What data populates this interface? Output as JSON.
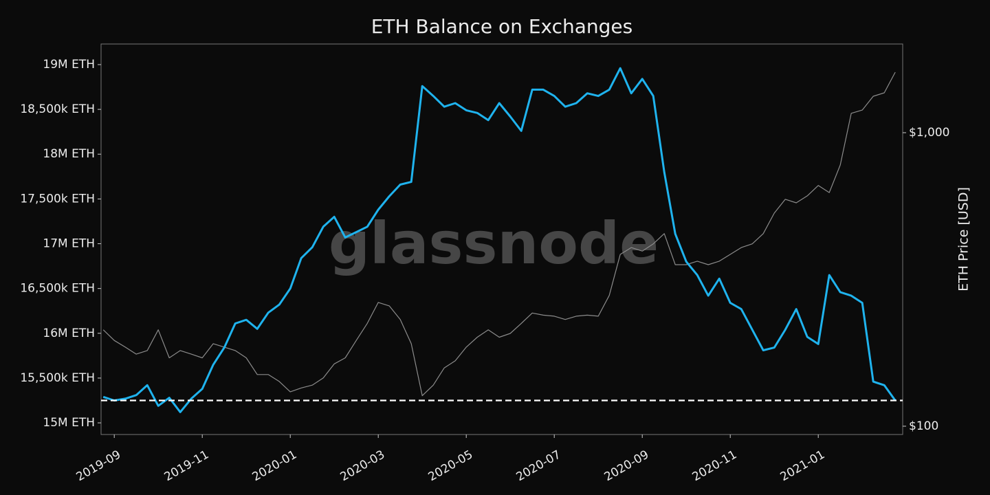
{
  "chart_data": {
    "type": "line",
    "title": "ETH Balance on Exchanges",
    "watermark": "glassnode",
    "y2label": "ETH Price [USD]",
    "categories": [
      null,
      "2019-09",
      null,
      null,
      null,
      null,
      null,
      null,
      null,
      "2019-11",
      null,
      null,
      null,
      null,
      null,
      null,
      null,
      "2020-01",
      null,
      null,
      null,
      null,
      null,
      null,
      null,
      "2020-03",
      null,
      null,
      null,
      null,
      null,
      null,
      null,
      "2020-05",
      null,
      null,
      null,
      null,
      null,
      null,
      null,
      "2020-07",
      null,
      null,
      null,
      null,
      null,
      null,
      null,
      "2020-09",
      null,
      null,
      null,
      null,
      null,
      null,
      null,
      "2020-11",
      null,
      null,
      null,
      null,
      null,
      null,
      null,
      "2021-01",
      null,
      null,
      null,
      null,
      null,
      null,
      null
    ],
    "series": [
      {
        "color": "#1fb3ee",
        "values": [
          15290000,
          15250000,
          15270000,
          15310000,
          15420000,
          15190000,
          15280000,
          15120000,
          15270000,
          15380000,
          15650000,
          15840000,
          16110000,
          16150000,
          16050000,
          16230000,
          16320000,
          16500000,
          16840000,
          16960000,
          17190000,
          17300000,
          17070000,
          17130000,
          17190000,
          17380000,
          17530000,
          17660000,
          17690000,
          18760000,
          18650000,
          18530000,
          18570000,
          18490000,
          18460000,
          18380000,
          18570000,
          18420000,
          18260000,
          18720000,
          18720000,
          18650000,
          18530000,
          18570000,
          18680000,
          18650000,
          18720000,
          18960000,
          18680000,
          18840000,
          18650000,
          17800000,
          17110000,
          16800000,
          16650000,
          16420000,
          16610000,
          16340000,
          16270000,
          16040000,
          15810000,
          15840000,
          16040000,
          16270000,
          15960000,
          15880000,
          16650000,
          16460000,
          16420000,
          16340000,
          15460000,
          15420000,
          15250000
        ]
      },
      {
        "color": "#8c8c8c",
        "axis": "y2",
        "values": [
          213,
          196,
          186,
          176,
          181,
          213,
          171,
          181,
          176,
          171,
          191,
          186,
          181,
          171,
          150,
          150,
          142,
          131,
          135,
          138,
          146,
          163,
          171,
          196,
          224,
          264,
          257,
          231,
          191,
          127,
          138,
          158,
          167,
          186,
          201,
          213,
          201,
          207,
          224,
          243,
          239,
          237,
          231,
          237,
          239,
          237,
          279,
          385,
          406,
          395,
          418,
          453,
          355,
          355,
          365,
          355,
          365,
          385,
          406,
          418,
          453,
          532,
          593,
          577,
          609,
          661,
          625,
          776,
          1164,
          1194,
          1331,
          1367,
          1607
        ]
      }
    ],
    "ylim": [
      14870000,
      19230000
    ],
    "yticks": [
      {
        "value": 15000000,
        "label": "15M ETH"
      },
      {
        "value": 15500000,
        "label": "15,500k ETH"
      },
      {
        "value": 16000000,
        "label": "16M ETH"
      },
      {
        "value": 16500000,
        "label": "16,500k ETH"
      },
      {
        "value": 17000000,
        "label": "17M ETH"
      },
      {
        "value": 17500000,
        "label": "17,500k ETH"
      },
      {
        "value": 18000000,
        "label": "18M ETH"
      },
      {
        "value": 18500000,
        "label": "18,500k ETH"
      },
      {
        "value": 19000000,
        "label": "19M ETH"
      }
    ],
    "y2lim": [
      93.7,
      2005
    ],
    "y2scale": "log",
    "y2ticks": [
      {
        "value": 100,
        "label": "$100"
      },
      {
        "value": 1000,
        "label": "$1,000"
      }
    ],
    "hline": {
      "value": 15250000,
      "color": "#ffffff",
      "style": "dashed"
    }
  }
}
